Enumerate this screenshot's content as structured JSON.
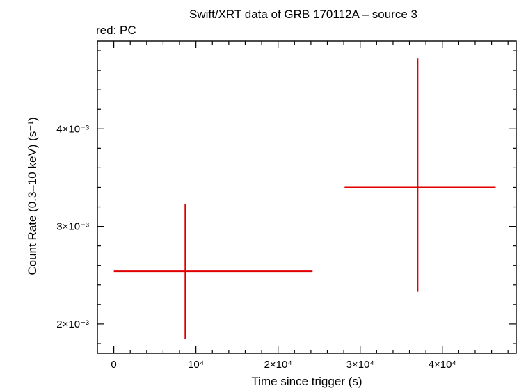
{
  "chart_data": {
    "type": "scatter",
    "title": "Swift/XRT data of GRB 170112A – source 3",
    "subtitle": "red: PC",
    "xlabel": "Time since trigger (s)",
    "ylabel": "Count Rate (0.3–10 keV) (s⁻¹)",
    "x_ticks": [
      {
        "value": 0,
        "label": "0"
      },
      {
        "value": 10000,
        "label": "10⁴"
      },
      {
        "value": 20000,
        "label": "2×10⁴"
      },
      {
        "value": 30000,
        "label": "3×10⁴"
      },
      {
        "value": 40000,
        "label": "4×10⁴"
      }
    ],
    "y_ticks": [
      {
        "value": 0.002,
        "label": "2×10⁻³"
      },
      {
        "value": 0.003,
        "label": "3×10⁻³"
      },
      {
        "value": 0.004,
        "label": "4×10⁻³"
      }
    ],
    "xlim": [
      -2000,
      49000
    ],
    "ylim": [
      0.0017,
      0.0049
    ],
    "y_scale": "linear",
    "grid": false,
    "series": [
      {
        "color": "#e00000",
        "points": [
          {
            "x": 8700,
            "x_lo": 0,
            "x_hi": 24200,
            "y": 0.00254,
            "y_lo": 0.00185,
            "y_hi": 0.00323
          },
          {
            "x": 37000,
            "x_lo": 28100,
            "x_hi": 46500,
            "y": 0.0034,
            "y_lo": 0.00233,
            "y_hi": 0.00472
          }
        ]
      }
    ]
  }
}
